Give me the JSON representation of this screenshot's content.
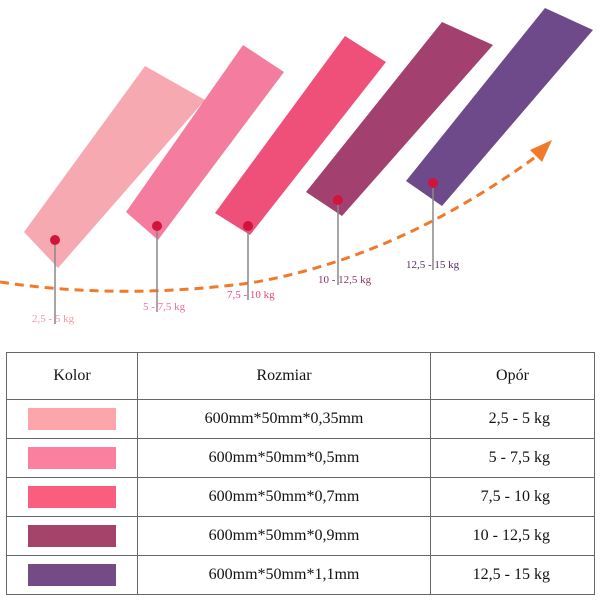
{
  "bands": [
    {
      "color": "#f7a9b2",
      "label_color": "#f29aa8",
      "resistance": "2,5 - 5 kg"
    },
    {
      "color": "#f47d9f",
      "label_color": "#ee6f95",
      "resistance": "5 - 7,5 kg"
    },
    {
      "color": "#ee5079",
      "label_color": "#e74775",
      "resistance": "7,5 - 10 kg"
    },
    {
      "color": "#a2406f",
      "label_color": "#8e2e62",
      "resistance": "10 - 12,5 kg"
    },
    {
      "color": "#6f4a8a",
      "label_color": "#4e2d66",
      "resistance": "12,5 - 15 kg"
    }
  ],
  "arrow_color": "#f07a2a",
  "table": {
    "headers": [
      "Kolor",
      "Rozmiar",
      "Opór"
    ],
    "rows": [
      {
        "color": "#fca5ab",
        "size": "600mm*50mm*0,35mm",
        "resistance": "2,5 - 5 kg"
      },
      {
        "color": "#fb7f9f",
        "size": "600mm*50mm*0,5mm",
        "resistance": "5 - 7,5 kg"
      },
      {
        "color": "#fb5d7e",
        "size": "600mm*50mm*0,7mm",
        "resistance": "7,5 - 10 kg"
      },
      {
        "color": "#a4446b",
        "size": "600mm*50mm*0,9mm",
        "resistance": "10 - 12,5 kg"
      },
      {
        "color": "#744b85",
        "size": "600mm*50mm*1,1mm",
        "resistance": "12,5 - 15 kg"
      }
    ]
  }
}
